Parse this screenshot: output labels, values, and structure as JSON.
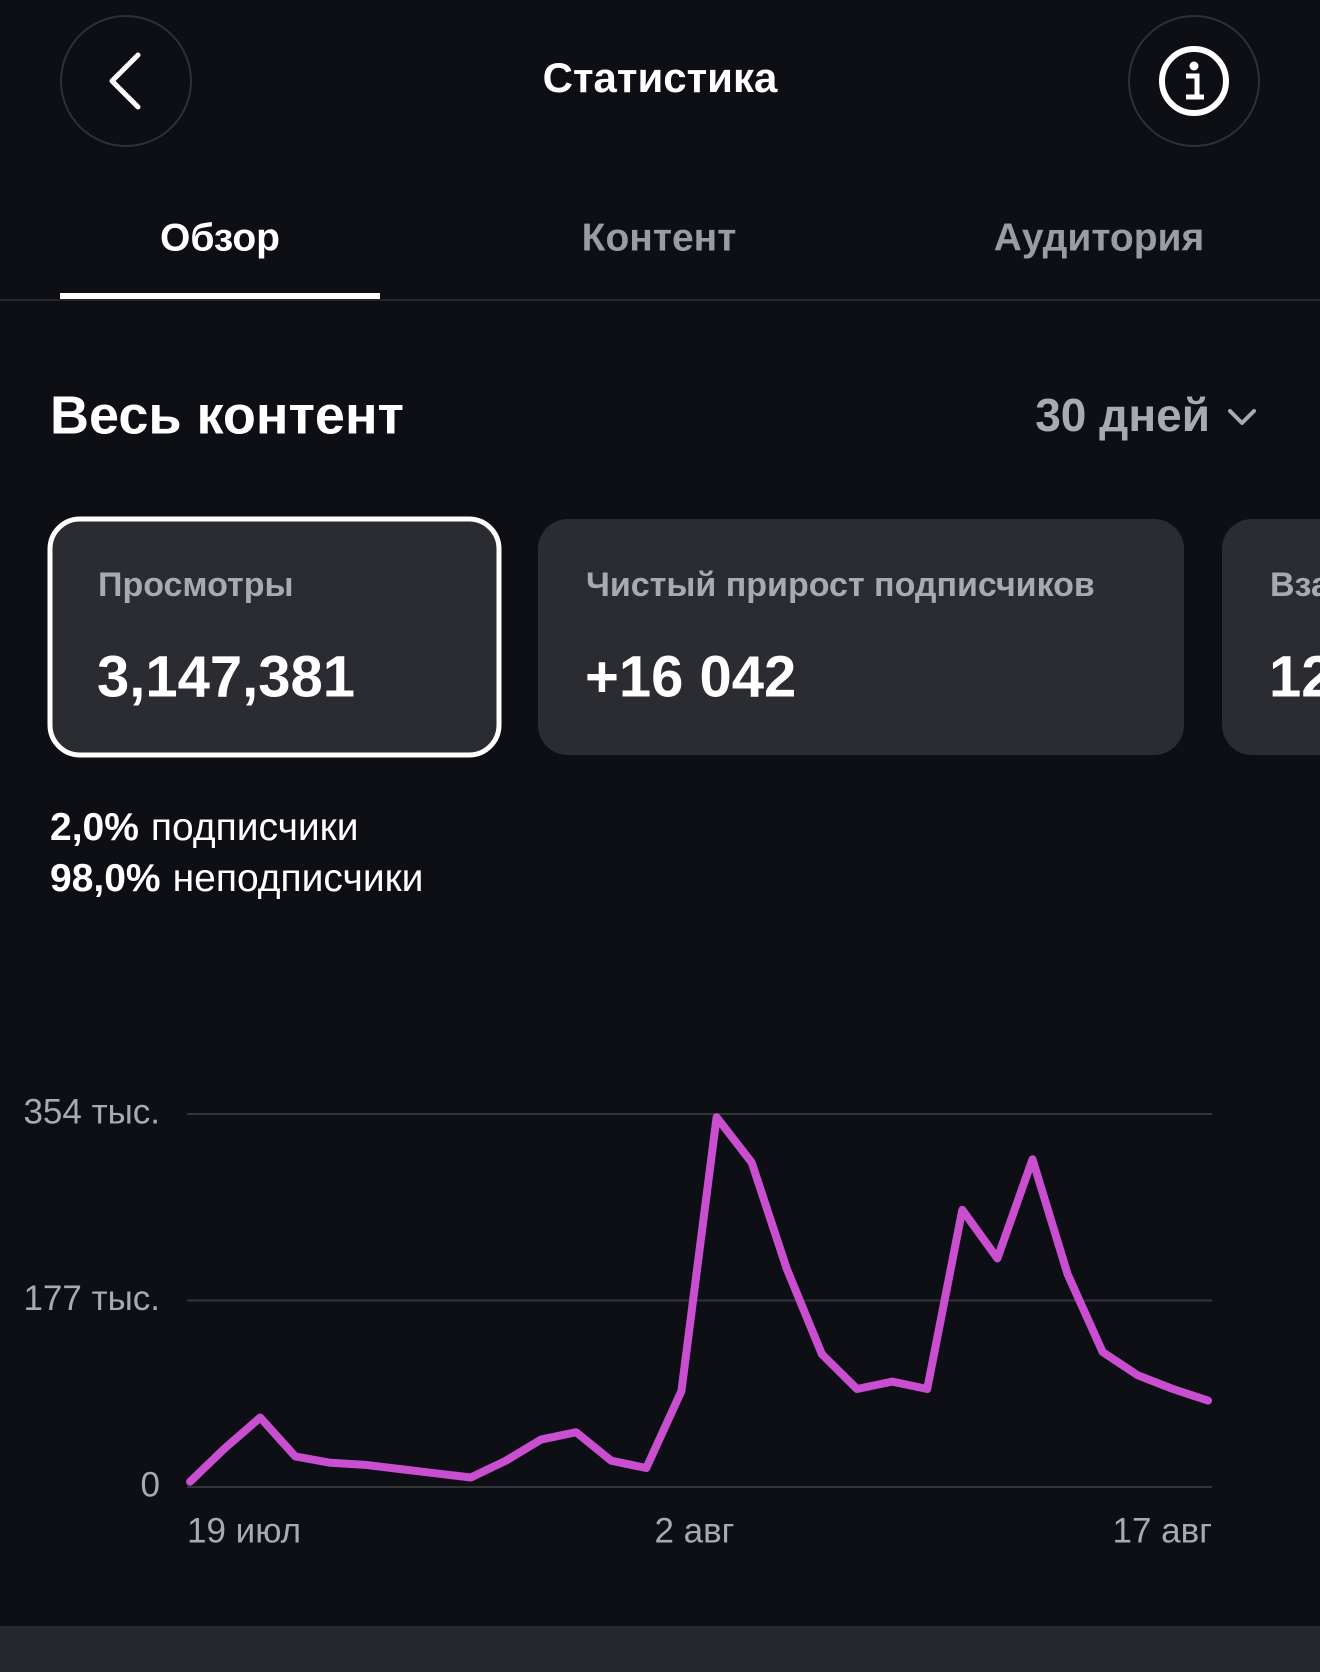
{
  "header": {
    "title": "Статистика"
  },
  "tabs": [
    "Обзор",
    "Контент",
    "Аудитория"
  ],
  "active_tab": 0,
  "section": {
    "title": "Весь контент",
    "period": "30 дней"
  },
  "cards": [
    {
      "label": "Просмотры",
      "value": "3,147,381"
    },
    {
      "label": "Чистый прирост подписчиков",
      "value": "+16 042"
    },
    {
      "label": "Вза",
      "value": "12"
    }
  ],
  "breakdown": [
    {
      "value": "2,0%",
      "label": "подписчики"
    },
    {
      "value": "98,0%",
      "label": "неподписчики"
    }
  ],
  "chart_data": {
    "type": "line",
    "categories": [
      "19 июл",
      null,
      null,
      null,
      null,
      null,
      null,
      null,
      null,
      null,
      null,
      null,
      null,
      null,
      "2 авг",
      null,
      null,
      null,
      null,
      null,
      null,
      null,
      null,
      null,
      null,
      null,
      null,
      null,
      null,
      "17 авг"
    ],
    "values": [
      5,
      37,
      66,
      29,
      23,
      21,
      17,
      13,
      9,
      25,
      45,
      52,
      25,
      18,
      91,
      351,
      308,
      207,
      126,
      93,
      100,
      93,
      263,
      217,
      311,
      202,
      128,
      106,
      93,
      82
    ],
    "color": "#c94fd0",
    "ylim": [
      0,
      354
    ],
    "yticks": [
      0,
      {
        "value": 177,
        "label": "177 тыс."
      },
      {
        "value": 354,
        "label": "354 тыс."
      }
    ],
    "grid": true
  }
}
